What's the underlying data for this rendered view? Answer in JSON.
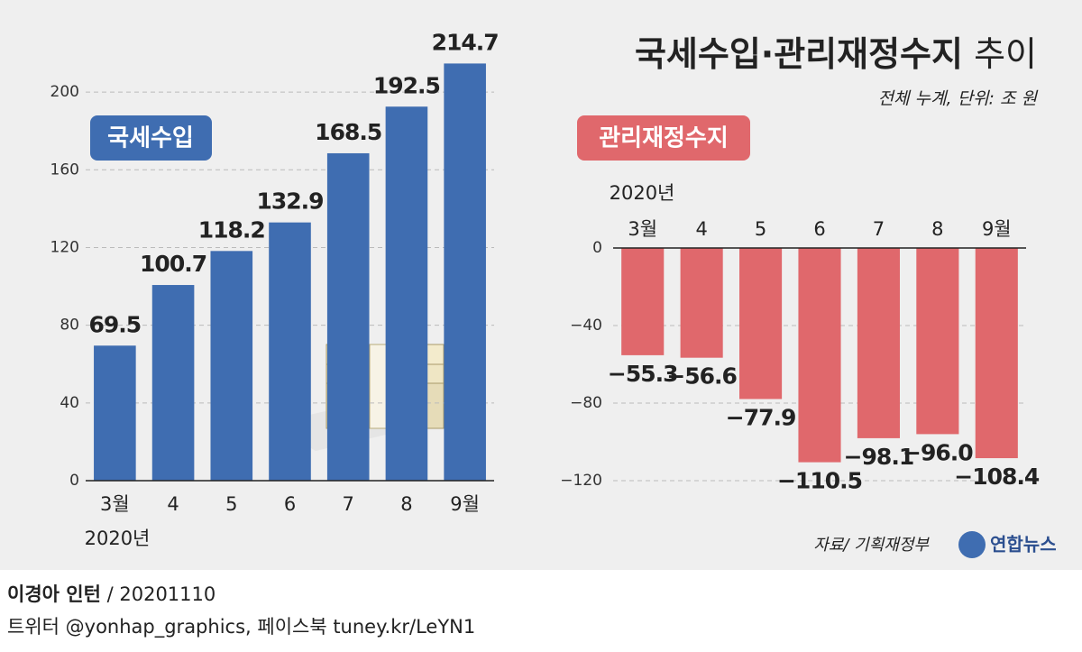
{
  "title": "국세수입·관리재정수지",
  "title_suffix": "추이",
  "subtitle": "전체 누계, 단위: 조 원",
  "source": "자료/ 기획재정부",
  "logo": "연합뉴스",
  "footer": {
    "author": "이경아 인턴",
    "date": "/ 20201110",
    "credits": "트위터 @yonhap_graphics, 페이스북 tuney.kr/LeYN1"
  },
  "chart_data": [
    {
      "type": "bar",
      "label": "국세수입",
      "year_label": "2020년",
      "categories": [
        "3월",
        "4",
        "5",
        "6",
        "7",
        "8",
        "9월"
      ],
      "values": [
        69.5,
        100.7,
        118.2,
        132.9,
        168.5,
        192.5,
        214.7
      ],
      "color": "#3f6db1",
      "ylim": [
        0,
        220
      ],
      "yticks": [
        0,
        40,
        80,
        120,
        160,
        200
      ],
      "grid": true
    },
    {
      "type": "bar",
      "label": "관리재정수지",
      "year_label": "2020년",
      "categories": [
        "3월",
        "4",
        "5",
        "6",
        "7",
        "8",
        "9월"
      ],
      "values": [
        -55.3,
        -56.6,
        -77.9,
        -110.5,
        -98.1,
        -96.0,
        -108.4
      ],
      "value_labels": [
        "−55.3",
        "−56.6",
        "−77.9",
        "−110.5",
        "−98.1",
        "−96.0",
        "−108.4"
      ],
      "color": "#e0686c",
      "ylim": [
        -120,
        0
      ],
      "yticks": [
        0,
        {
          "value": -40,
          "label": "−40"
        },
        {
          "value": -80,
          "label": "−80"
        },
        {
          "value": -120,
          "label": "−120"
        }
      ],
      "grid": true
    }
  ]
}
